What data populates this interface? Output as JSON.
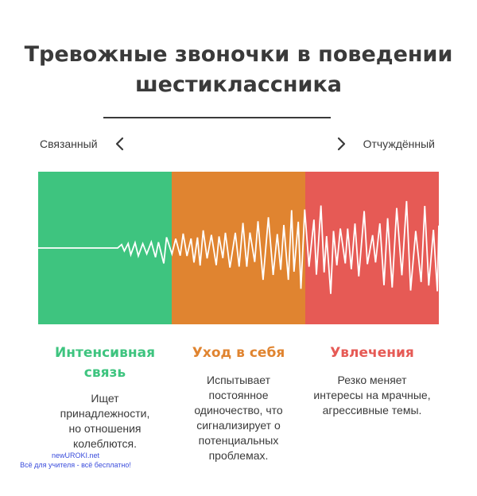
{
  "title": {
    "line1": "Тревожные звоночки в поведении",
    "line2": "шестиклассника"
  },
  "scale": {
    "left_label": "Связанный",
    "right_label": "Отчуждённый",
    "left_icon": "chevron-left-icon",
    "right_icon": "chevron-right-icon"
  },
  "colors": {
    "green": "#3ec47f",
    "orange": "#e08430",
    "red": "#e65a55",
    "text": "#3a3a3a",
    "wave": "#ffffff"
  },
  "stages": [
    {
      "heading": "Интенсивная связь",
      "description": "Ищет принадлежности, но отношения колеблются."
    },
    {
      "heading": "Уход в себя",
      "description": "Испытывает постоянное одиночество, что сигнализирует о потенциальных проблемах."
    },
    {
      "heading": "Увлечения",
      "description": "Резко меняет интересы на мрачные, агрессивные темы."
    }
  ],
  "watermark": {
    "line1": "newUROKI.net",
    "line2": "Всё для учителя - всё бесплатно!"
  }
}
